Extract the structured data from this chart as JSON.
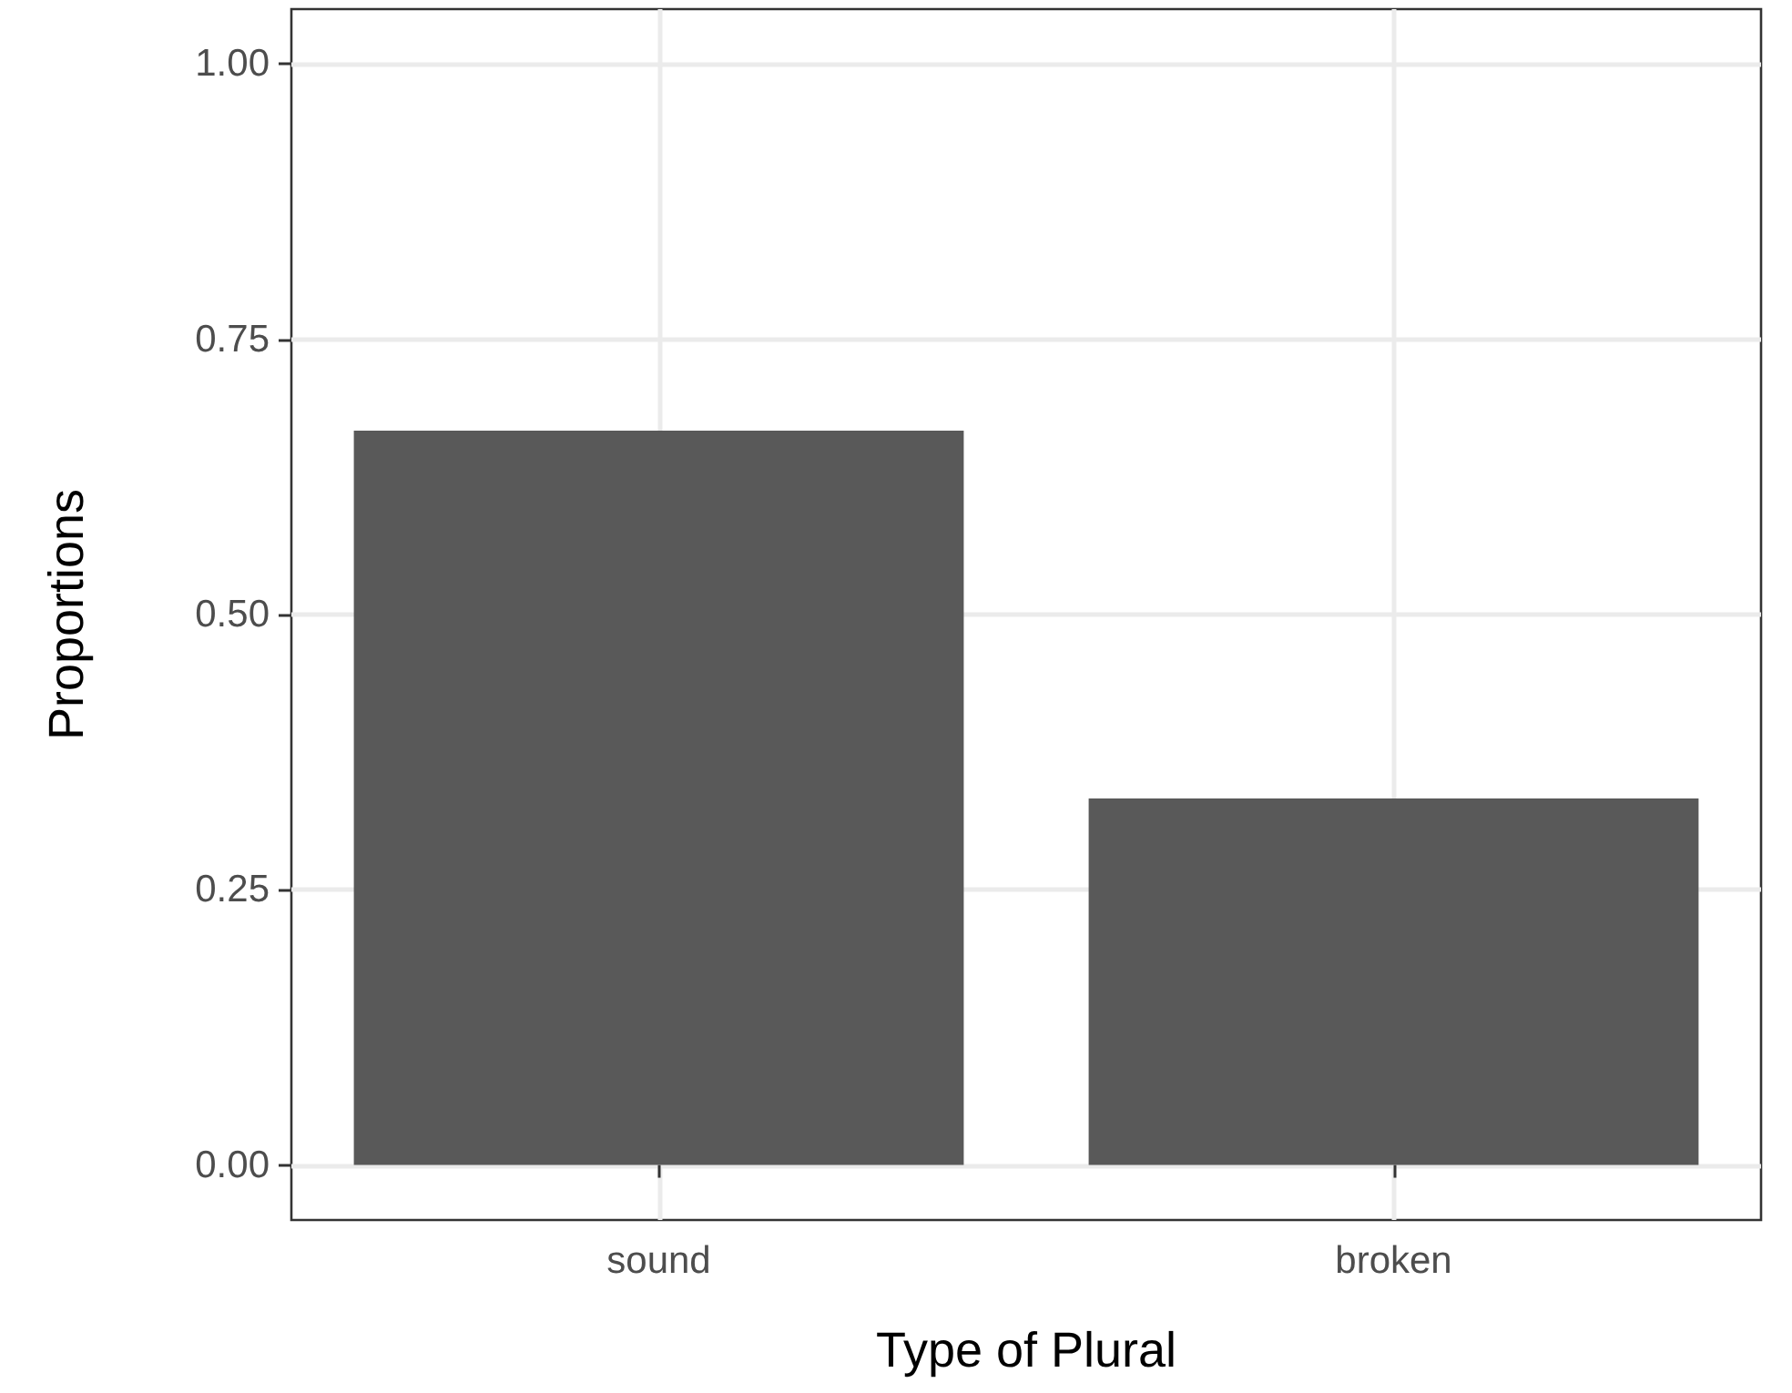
{
  "chart_data": {
    "type": "bar",
    "xlabel": "Type of Plural",
    "ylabel": "Proportions",
    "categories": [
      "sound",
      "broken"
    ],
    "values": [
      0.667,
      0.333
    ],
    "color": "#595959",
    "ylim": [
      -0.05,
      1.05
    ],
    "yticks": [
      {
        "value": 0,
        "label": "0.00"
      },
      {
        "value": 0.25,
        "label": "0.25"
      },
      {
        "value": 0.5,
        "label": "0.50"
      },
      {
        "value": 0.75,
        "label": "0.75"
      },
      {
        "value": 1,
        "label": "1.00"
      }
    ],
    "grid": true
  }
}
